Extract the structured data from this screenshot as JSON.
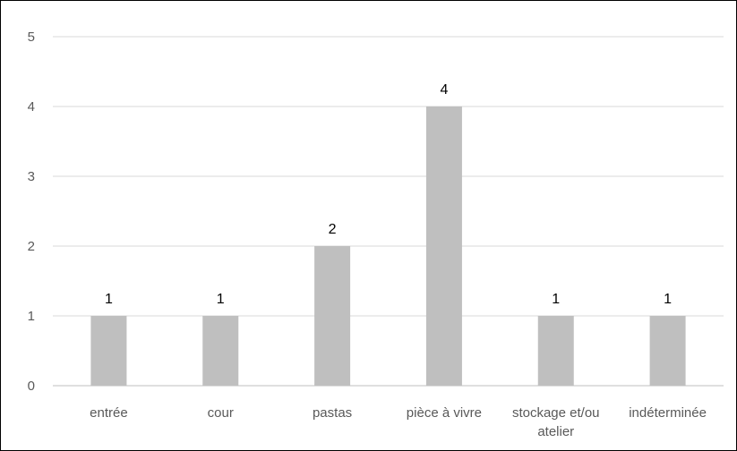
{
  "chart_data": {
    "type": "bar",
    "title": "",
    "xlabel": "",
    "ylabel": "",
    "categories": [
      "entrée",
      "cour",
      "pastas",
      "pièce à vivre",
      "stockage et/ou atelier",
      "indéterminée"
    ],
    "values": [
      1,
      1,
      2,
      4,
      1,
      1
    ],
    "data_labels": [
      "1",
      "1",
      "2",
      "4",
      "1",
      "1"
    ],
    "yticks": [
      "0",
      "1",
      "2",
      "3",
      "4",
      "5"
    ],
    "ylim": [
      0,
      5
    ],
    "grid": true,
    "legend": "none",
    "colors": {
      "bar": "#bfbfbf",
      "grid": "#d9d9d9",
      "axis": "#bfbfbf",
      "tick_text": "#595959",
      "label_text": "#000000",
      "border": "#000000"
    }
  }
}
